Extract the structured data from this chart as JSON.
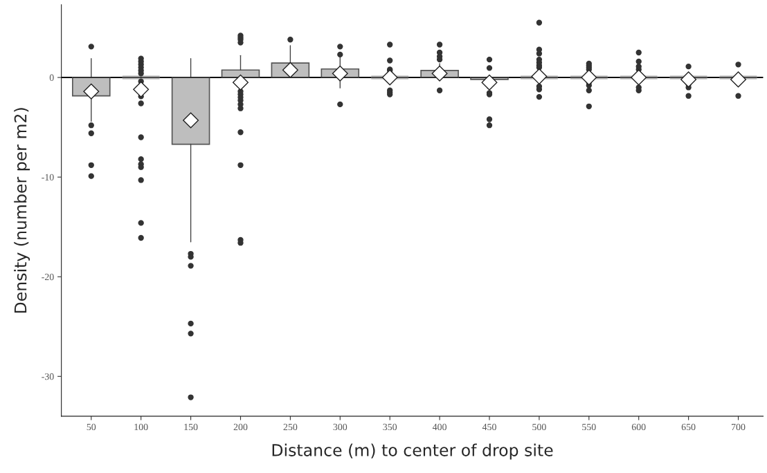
{
  "chart_data": {
    "type": "box",
    "xlabel": "Distance (m) to center of drop site",
    "ylabel": "Density (number per m2)",
    "categories": [
      "50",
      "100",
      "150",
      "200",
      "250",
      "300",
      "350",
      "400",
      "450",
      "500",
      "550",
      "600",
      "650",
      "700"
    ],
    "color": "#bebebe",
    "ylim": [
      -34,
      7.3
    ],
    "yticks": [
      0,
      -10,
      -20,
      -30
    ],
    "grid": false,
    "marker": "diamond",
    "ref_lines": [
      {
        "axis": "y",
        "value": 0,
        "color": "#000000"
      }
    ],
    "boxes": [
      {
        "low": -4.4,
        "q1": -1.85,
        "median": 0,
        "q3": 0,
        "high": 1.9,
        "mean": -1.4,
        "outliers": [
          3.1,
          -4.8,
          -5.6,
          -8.8,
          -9.9
        ]
      },
      {
        "low": 0,
        "q1": 0,
        "median": 0,
        "q3": 0,
        "high": 0,
        "mean": -1.2,
        "outliers": [
          1.9,
          1.6,
          1.3,
          1.0,
          0.7,
          0.4,
          -0.4,
          -0.8,
          -1.9,
          -2.6,
          -6.0,
          -8.2,
          -8.7,
          -9.0,
          -10.3,
          -14.6,
          -16.1
        ]
      },
      {
        "low": -16.5,
        "q1": -6.7,
        "median": 0,
        "q3": 0,
        "high": 1.9,
        "mean": -4.3,
        "outliers": [
          -17.7,
          -18.0,
          -18.9,
          -24.7,
          -25.7,
          -32.1
        ]
      },
      {
        "low": -0.9,
        "q1": 0,
        "median": 0,
        "q3": 0.75,
        "high": 2.2,
        "mean": -0.5,
        "outliers": [
          4.2,
          4.0,
          3.8,
          3.5,
          -1.4,
          -1.7,
          -2.0,
          -2.3,
          -2.7,
          -3.1,
          -5.5,
          -8.8,
          -16.3,
          -16.6
        ]
      },
      {
        "low": 0,
        "q1": 0,
        "median": 0,
        "q3": 1.45,
        "high": 3.2,
        "mean": 0.75,
        "outliers": [
          3.8
        ]
      },
      {
        "low": -1.05,
        "q1": 0,
        "median": 0,
        "q3": 0.85,
        "high": 2.2,
        "mean": 0.4,
        "outliers": [
          3.1,
          2.3,
          -2.7
        ]
      },
      {
        "low": 0,
        "q1": 0,
        "median": 0,
        "q3": 0,
        "high": 0,
        "mean": 0,
        "outliers": [
          3.3,
          1.7,
          0.8,
          0.7,
          -1.3,
          -1.5,
          -1.7
        ]
      },
      {
        "low": 0,
        "q1": 0,
        "median": 0,
        "q3": 0.7,
        "high": 1.4,
        "mean": 0.4,
        "outliers": [
          3.3,
          2.5,
          2.1,
          1.8,
          -1.3
        ]
      },
      {
        "low": 0,
        "q1": -0.2,
        "median": 0,
        "q3": 0,
        "high": 0,
        "mean": -0.5,
        "outliers": [
          1.8,
          0.95,
          -0.9,
          -1.55,
          -1.7,
          -4.2,
          -4.8
        ]
      },
      {
        "low": 0,
        "q1": 0,
        "median": 0,
        "q3": 0,
        "high": 0,
        "mean": 0.1,
        "outliers": [
          5.5,
          2.8,
          2.4,
          1.8,
          1.5,
          1.2,
          1.0,
          -0.9,
          -1.2,
          -1.95
        ]
      },
      {
        "low": 0,
        "q1": 0,
        "median": 0,
        "q3": 0,
        "high": 0,
        "mean": 0,
        "outliers": [
          1.4,
          1.2,
          1.0,
          0.8,
          -0.5,
          -0.8,
          -1.3,
          -2.9
        ]
      },
      {
        "low": 0,
        "q1": 0,
        "median": 0,
        "q3": 0,
        "high": 0,
        "mean": 0,
        "outliers": [
          2.5,
          1.6,
          1.1,
          0.8,
          -1.0,
          -1.3
        ]
      },
      {
        "low": 0,
        "q1": 0,
        "median": 0,
        "q3": 0,
        "high": 0,
        "mean": -0.2,
        "outliers": [
          1.1,
          -0.7,
          -1.0,
          -1.85
        ]
      },
      {
        "low": 0,
        "q1": 0,
        "median": 0,
        "q3": 0,
        "high": 0,
        "mean": -0.2,
        "outliers": [
          1.3,
          -1.85
        ]
      }
    ]
  }
}
